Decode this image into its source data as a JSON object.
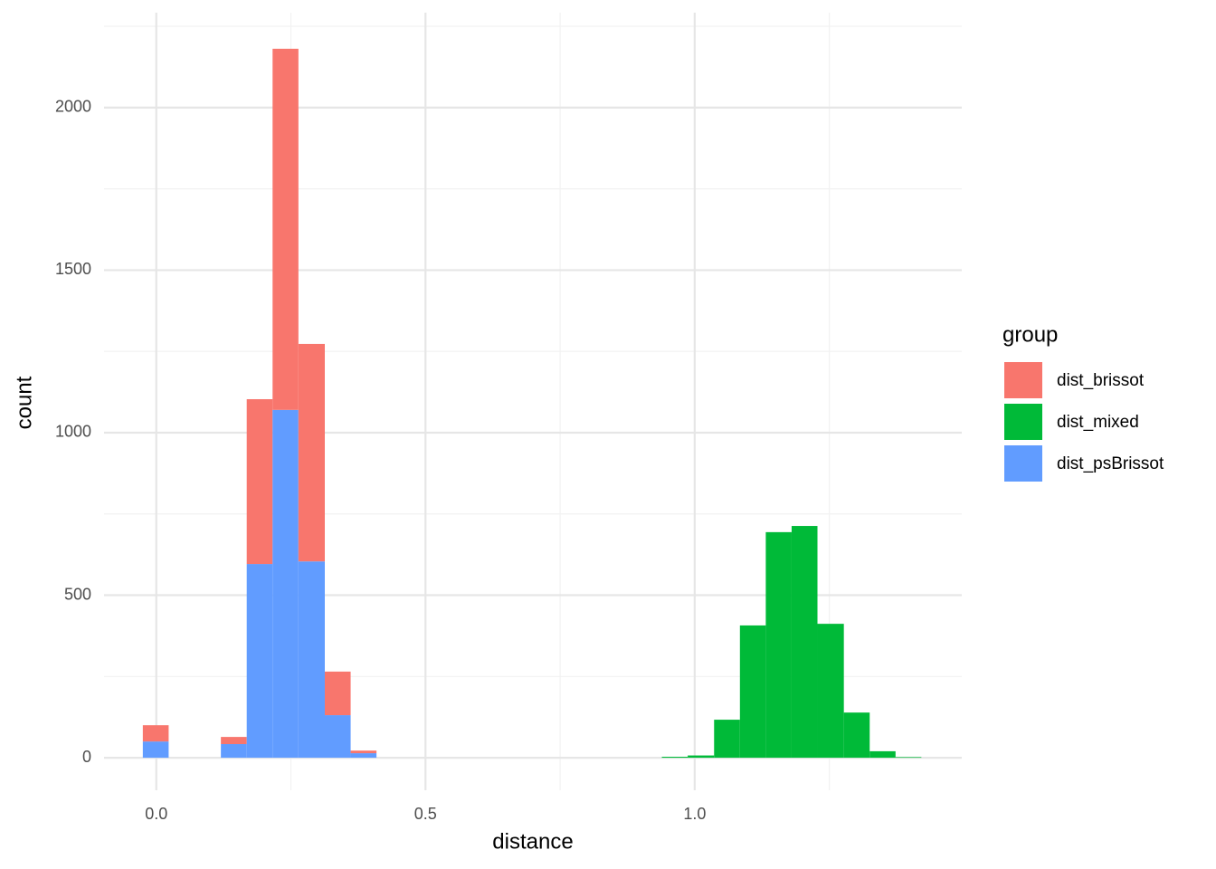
{
  "chart_data": {
    "type": "histogram",
    "x_label": "distance",
    "y_label": "count",
    "legend_title": "group",
    "bins": [
      -0.025,
      0.023,
      0.071,
      0.12,
      0.168,
      0.216,
      0.264,
      0.313,
      0.361,
      0.409,
      0.457,
      0.505,
      0.554,
      0.602,
      0.65,
      0.698,
      0.746,
      0.795,
      0.843,
      0.891,
      0.939,
      0.987,
      1.036,
      1.084,
      1.132,
      1.18,
      1.228,
      1.277,
      1.325,
      1.373,
      1.421
    ],
    "series": [
      {
        "name": "dist_brissot",
        "color": "#F8766D",
        "values": [
          50,
          0,
          0,
          22,
          507,
          1111,
          669,
          134,
          8,
          0,
          0,
          0,
          0,
          0,
          0,
          0,
          0,
          0,
          0,
          0,
          0,
          0,
          0,
          0,
          0,
          0,
          0,
          0,
          0,
          0
        ]
      },
      {
        "name": "dist_mixed",
        "color": "#00BA38",
        "values": [
          0,
          0,
          0,
          0,
          0,
          0,
          0,
          0,
          0,
          0,
          0,
          0,
          0,
          0,
          0,
          0,
          0,
          0,
          0,
          0,
          3,
          7,
          117,
          407,
          694,
          713,
          412,
          139,
          20,
          2
        ]
      },
      {
        "name": "dist_psBrissot",
        "color": "#619CFF",
        "values": [
          50,
          0,
          0,
          42,
          596,
          1070,
          604,
          131,
          14,
          0,
          0,
          0,
          0,
          0,
          0,
          0,
          0,
          0,
          0,
          0,
          0,
          0,
          0,
          0,
          0,
          0,
          0,
          0,
          0,
          0
        ]
      }
    ],
    "stacked": true,
    "xlim": [
      -0.097,
      1.496
    ],
    "ylim": [
      -100,
      2292
    ],
    "xticks": [
      {
        "value": 0,
        "label": "0.0"
      },
      {
        "value": 0.5,
        "label": "0.5"
      },
      {
        "value": 1,
        "label": "1.0"
      }
    ],
    "yticks": [
      0,
      500,
      1000,
      1500,
      2000
    ],
    "minor_grid_x": [
      0.25,
      0.75,
      1.25
    ],
    "minor_grid_y": [
      250,
      750,
      1250,
      1750,
      2250
    ],
    "grid": true,
    "legend_position": "right"
  }
}
